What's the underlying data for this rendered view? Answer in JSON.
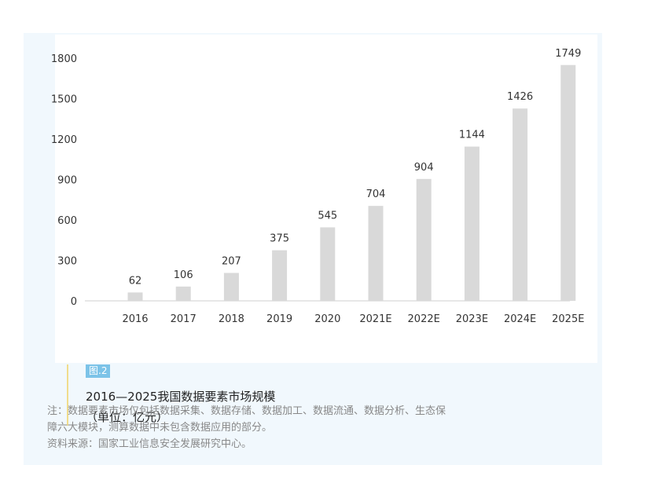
{
  "chart_data": {
    "type": "bar",
    "categories": [
      "2016",
      "2017",
      "2018",
      "2019",
      "2020",
      "2021E",
      "2022E",
      "2023E",
      "2024E",
      "2025E"
    ],
    "values": [
      62,
      106,
      207,
      375,
      545,
      704,
      904,
      1144,
      1426,
      1749
    ],
    "data_labels": [
      "62",
      "106",
      "207",
      "375",
      "545",
      "704",
      "904",
      "1144",
      "1426",
      "1749"
    ],
    "yticks": [
      "0",
      "300",
      "600",
      "900",
      "1200",
      "1500",
      "1800"
    ],
    "ytick_values": [
      0,
      300,
      600,
      900,
      1200,
      1500,
      1800
    ],
    "ylim": [
      0,
      1800
    ],
    "grid": false,
    "bar_color": "#d9d9d9"
  },
  "caption": {
    "fig_tag": "图.2",
    "title": "2016—2025我国数据要素市场规模",
    "subtitle": "（单位：亿元）"
  },
  "notes": {
    "line1": "注：数据要素市场仅包括数据采集、数据存储、数据加工、数据流通、数据分析、生态保",
    "line2": "障六大模块，测算数据中未包含数据应用的部分。",
    "line3": "资料来源：国家工业信息安全发展研究中心。"
  }
}
